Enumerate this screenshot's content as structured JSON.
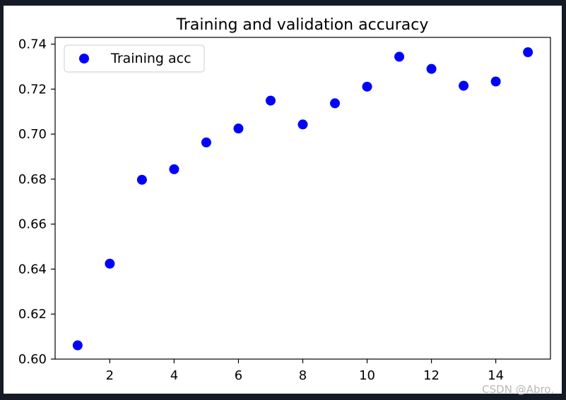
{
  "chart_data": {
    "type": "scatter",
    "title": "Training and validation accuracy",
    "xlabel": "",
    "ylabel": "",
    "xlim": [
      0.3,
      15.7
    ],
    "ylim": [
      0.6,
      0.743
    ],
    "xticks": [
      2,
      4,
      6,
      8,
      10,
      12,
      14
    ],
    "yticks": [
      0.6,
      0.62,
      0.64,
      0.66,
      0.68,
      0.7,
      0.72,
      0.74
    ],
    "ytick_labels": [
      "0.60",
      "0.62",
      "0.64",
      "0.66",
      "0.68",
      "0.70",
      "0.72",
      "0.74"
    ],
    "grid": false,
    "legend_position": "top-left",
    "series": [
      {
        "name": "Training acc",
        "color": "#0000ff",
        "marker": "circle",
        "x": [
          1,
          2,
          3,
          4,
          5,
          6,
          7,
          8,
          9,
          10,
          11,
          12,
          13,
          14,
          15
        ],
        "y": [
          0.6061,
          0.6424,
          0.6797,
          0.6844,
          0.6963,
          0.7025,
          0.7149,
          0.7043,
          0.7137,
          0.7211,
          0.7344,
          0.729,
          0.7215,
          0.7234,
          0.7364
        ]
      }
    ]
  },
  "watermark": "CSDN @Abro."
}
